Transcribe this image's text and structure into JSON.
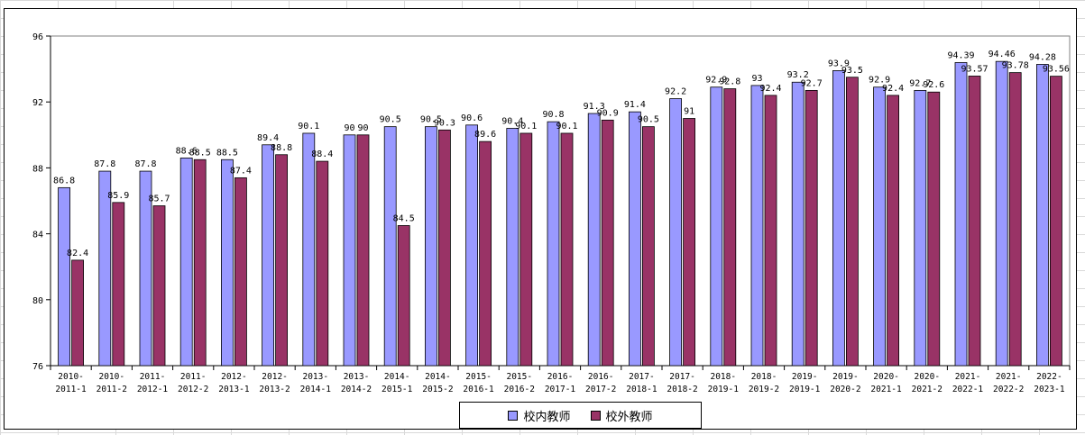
{
  "chart_data": {
    "type": "bar",
    "title": "",
    "xlabel": "",
    "ylabel": "",
    "ylim": [
      76,
      96
    ],
    "yticks": [
      76,
      80,
      84,
      88,
      92,
      96
    ],
    "legend_position": "bottom",
    "grid": false,
    "categories": [
      [
        "2010-",
        "2011-1"
      ],
      [
        "2010-",
        "2011-2"
      ],
      [
        "2011-",
        "2012-1"
      ],
      [
        "2011-",
        "2012-2"
      ],
      [
        "2012-",
        "2013-1"
      ],
      [
        "2012-",
        "2013-2"
      ],
      [
        "2013-",
        "2014-1"
      ],
      [
        "2013-",
        "2014-2"
      ],
      [
        "2014-",
        "2015-1"
      ],
      [
        "2014-",
        "2015-2"
      ],
      [
        "2015-",
        "2016-1"
      ],
      [
        "2015-",
        "2016-2"
      ],
      [
        "2016-",
        "2017-1"
      ],
      [
        "2016-",
        "2017-2"
      ],
      [
        "2017-",
        "2018-1"
      ],
      [
        "2017-",
        "2018-2"
      ],
      [
        "2018-",
        "2019-1"
      ],
      [
        "2018-",
        "2019-2"
      ],
      [
        "2019-",
        "2019-1"
      ],
      [
        "2019-",
        "2020-2"
      ],
      [
        "2020-",
        "2021-1"
      ],
      [
        "2020-",
        "2021-2"
      ],
      [
        "2021-",
        "2022-1"
      ],
      [
        "2021-",
        "2022-2"
      ],
      [
        "2022-",
        "2023-1"
      ]
    ],
    "series": [
      {
        "name": "校内教师",
        "color": "#9999ff",
        "values": [
          86.8,
          87.8,
          87.8,
          88.6,
          88.5,
          89.4,
          90.1,
          90,
          90.5,
          90.5,
          90.6,
          90.4,
          90.8,
          91.3,
          91.4,
          92.2,
          92.9,
          93,
          93.2,
          93.9,
          92.9,
          92.7,
          94.39,
          94.46,
          94.28
        ],
        "labels": [
          "86.8",
          "87.8",
          "87.8",
          "88.6",
          "88.5",
          "89.4",
          "90.1",
          "90",
          "90.5",
          "90.5",
          "90.6",
          "90.4",
          "90.8",
          "91.3",
          "91.4",
          "92.2",
          "92.9",
          "93",
          "93.2",
          "93.9",
          "92.9",
          "92.7",
          "94.39",
          "94.46",
          "94.28"
        ]
      },
      {
        "name": "校外教师",
        "color": "#993366",
        "values": [
          82.4,
          85.9,
          85.7,
          88.5,
          87.4,
          88.8,
          88.4,
          90,
          84.5,
          90.3,
          89.6,
          90.1,
          90.1,
          90.9,
          90.5,
          91,
          92.8,
          92.4,
          92.7,
          93.5,
          92.4,
          92.6,
          93.57,
          93.78,
          93.56
        ],
        "labels": [
          "82.4",
          "85.9",
          "85.7",
          "88.5",
          "87.4",
          "88.8",
          "88.4",
          "90",
          "84.5",
          "90.3",
          "89.6",
          "90.1",
          "90.1",
          "90.9",
          "90.5",
          "91",
          "92.8",
          "92.4",
          "92.7",
          "93.5",
          "92.4",
          "92.6",
          "93.57",
          "93.78",
          "93.56"
        ]
      }
    ]
  }
}
